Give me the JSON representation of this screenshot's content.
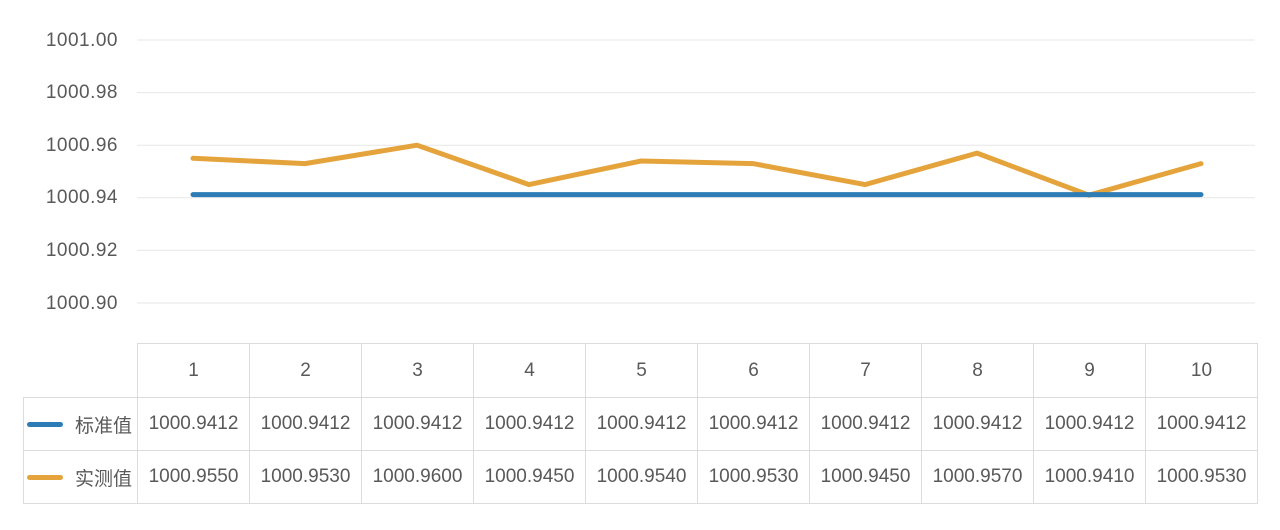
{
  "chart_data": {
    "type": "line",
    "categories": [
      "1",
      "2",
      "3",
      "4",
      "5",
      "6",
      "7",
      "8",
      "9",
      "10"
    ],
    "series": [
      {
        "id": "standard",
        "name": "标准值",
        "color": "#2d7cb5",
        "values": [
          1000.9412,
          1000.9412,
          1000.9412,
          1000.9412,
          1000.9412,
          1000.9412,
          1000.9412,
          1000.9412,
          1000.9412,
          1000.9412
        ]
      },
      {
        "id": "measured",
        "name": "实测值",
        "color": "#e5a33c",
        "values": [
          1000.955,
          1000.953,
          1000.96,
          1000.945,
          1000.954,
          1000.953,
          1000.945,
          1000.957,
          1000.941,
          1000.953
        ]
      }
    ],
    "title": "",
    "xlabel": "",
    "ylabel": "",
    "ylim": [
      1000.9,
      1001.0
    ],
    "y_ticks": [
      "1001.00",
      "1000.98",
      "1000.96",
      "1000.94",
      "1000.92",
      "1000.90"
    ],
    "grid": true,
    "legend_position": "left column of data table",
    "colors": {
      "gridline": "#e7e7e7",
      "axis_text": "#595959",
      "table_border": "#dcdcdc",
      "table_text": "#595959",
      "background": "#ffffff"
    }
  },
  "table": {
    "corner_label": "",
    "column_headers": [
      "1",
      "2",
      "3",
      "4",
      "5",
      "6",
      "7",
      "8",
      "9",
      "10"
    ],
    "rows": [
      {
        "label": "标准值",
        "values": [
          "1000.9412",
          "1000.9412",
          "1000.9412",
          "1000.9412",
          "1000.9412",
          "1000.9412",
          "1000.9412",
          "1000.9412",
          "1000.9412",
          "1000.9412"
        ]
      },
      {
        "label": "实测值",
        "values": [
          "1000.9550",
          "1000.9530",
          "1000.9600",
          "1000.9450",
          "1000.9540",
          "1000.9530",
          "1000.9450",
          "1000.9570",
          "1000.9410",
          "1000.9530"
        ]
      }
    ]
  }
}
